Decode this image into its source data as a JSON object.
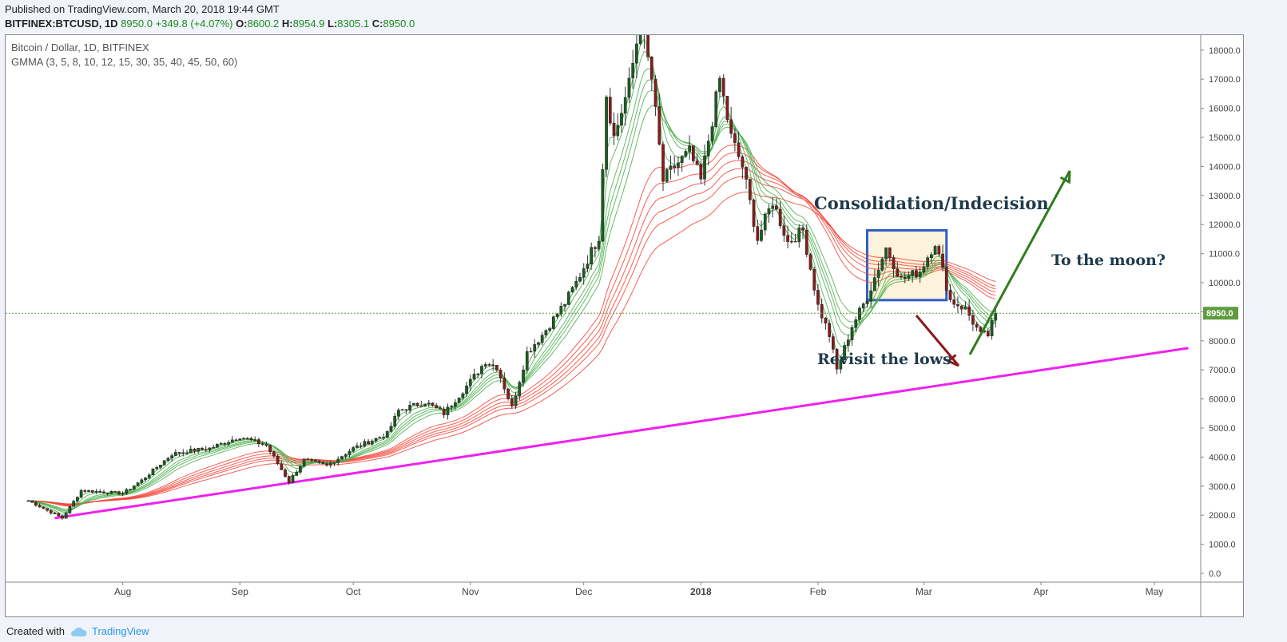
{
  "header": {
    "published": "Published on TradingView.com, March 20, 2018 19:44 GMT",
    "symbol": "BITFINEX:BTCUSD, 1D",
    "last": "8950.0",
    "change": "+349.8 (+4.07%)",
    "o_label": "O:",
    "o": "8600.2",
    "h_label": "H:",
    "h": "8954.9",
    "l_label": "L:",
    "l": "8305.1",
    "c_label": "C:",
    "c": "8950.0"
  },
  "legend": {
    "pair": "Bitcoin / Dollar, 1D, BITFINEX",
    "study": "GMMA (3, 5, 8, 10, 12, 15, 30, 35, 40, 45, 50, 60)"
  },
  "annotations": {
    "consolidation": "Consolidation/Indecision",
    "moon": "To the moon?",
    "revisit": "Revisit the lows"
  },
  "footer": {
    "created_with": "Created with",
    "brand": "TradingView"
  },
  "colors": {
    "up": "#1b5e20",
    "down": "#8b1a1a",
    "short_ema": "#4caf50",
    "long_ema": "#f44336",
    "trendline": "#ee22ee",
    "box": "#2f5ec4",
    "arrow_up": "#2e7d1b",
    "arrow_down": "#8b1a1a",
    "price_tag": "#5e9c3e"
  },
  "chart_data": {
    "type": "candlestick",
    "symbol": "BTCUSD",
    "timeframe": "1D",
    "ylim": [
      -500,
      18700
    ],
    "y_ticks": [
      "0.0",
      "1000.0",
      "2000.0",
      "3000.0",
      "4000.0",
      "5000.0",
      "6000.0",
      "7000.0",
      "8000.0",
      "9000.0",
      "10000.0",
      "11000.0",
      "12000.0",
      "13000.0",
      "14000.0",
      "15000.0",
      "16000.0",
      "17000.0",
      "18000.0"
    ],
    "x_ticks": [
      {
        "label": "Aug",
        "date": "2017-08-01"
      },
      {
        "label": "Sep",
        "date": "2017-09-01"
      },
      {
        "label": "Oct",
        "date": "2017-10-01"
      },
      {
        "label": "Nov",
        "date": "2017-11-01"
      },
      {
        "label": "Dec",
        "date": "2017-12-01"
      },
      {
        "label": "2018",
        "date": "2018-01-01"
      },
      {
        "label": "Feb",
        "date": "2018-02-01"
      },
      {
        "label": "Mar",
        "date": "2018-03-01"
      },
      {
        "label": "Apr",
        "date": "2018-04-01"
      },
      {
        "label": "May",
        "date": "2018-05-01"
      }
    ],
    "last_price_label": "8950.0",
    "last_price": 8950,
    "close_series": [
      {
        "date": "2017-07-07",
        "close": 2500
      },
      {
        "date": "2017-07-16",
        "close": 1900
      },
      {
        "date": "2017-07-21",
        "close": 2850
      },
      {
        "date": "2017-08-01",
        "close": 2750
      },
      {
        "date": "2017-08-06",
        "close": 3200
      },
      {
        "date": "2017-08-14",
        "close": 4100
      },
      {
        "date": "2017-08-18",
        "close": 4200
      },
      {
        "date": "2017-08-24",
        "close": 4300
      },
      {
        "date": "2017-09-01",
        "close": 4700
      },
      {
        "date": "2017-09-08",
        "close": 4400
      },
      {
        "date": "2017-09-14",
        "close": 3150
      },
      {
        "date": "2017-09-18",
        "close": 3900
      },
      {
        "date": "2017-09-24",
        "close": 3700
      },
      {
        "date": "2017-10-01",
        "close": 4300
      },
      {
        "date": "2017-10-10",
        "close": 4800
      },
      {
        "date": "2017-10-13",
        "close": 5600
      },
      {
        "date": "2017-10-20",
        "close": 5900
      },
      {
        "date": "2017-10-25",
        "close": 5500
      },
      {
        "date": "2017-11-01",
        "close": 6600
      },
      {
        "date": "2017-11-05",
        "close": 7300
      },
      {
        "date": "2017-11-08",
        "close": 7100
      },
      {
        "date": "2017-11-12",
        "close": 5700
      },
      {
        "date": "2017-11-16",
        "close": 7600
      },
      {
        "date": "2017-11-20",
        "close": 8200
      },
      {
        "date": "2017-11-26",
        "close": 9300
      },
      {
        "date": "2017-11-29",
        "close": 10000
      },
      {
        "date": "2017-12-05",
        "close": 11600
      },
      {
        "date": "2017-12-07",
        "close": 16500
      },
      {
        "date": "2017-12-09",
        "close": 15000
      },
      {
        "date": "2017-12-13",
        "close": 16800
      },
      {
        "date": "2017-12-16",
        "close": 19000
      },
      {
        "date": "2017-12-19",
        "close": 17000
      },
      {
        "date": "2017-12-22",
        "close": 13500
      },
      {
        "date": "2017-12-25",
        "close": 14000
      },
      {
        "date": "2017-12-29",
        "close": 14500
      },
      {
        "date": "2018-01-01",
        "close": 13500
      },
      {
        "date": "2018-01-06",
        "close": 17000
      },
      {
        "date": "2018-01-09",
        "close": 15000
      },
      {
        "date": "2018-01-12",
        "close": 14000
      },
      {
        "date": "2018-01-16",
        "close": 11500
      },
      {
        "date": "2018-01-20",
        "close": 12800
      },
      {
        "date": "2018-01-24",
        "close": 11400
      },
      {
        "date": "2018-01-28",
        "close": 11800
      },
      {
        "date": "2018-02-01",
        "close": 9200
      },
      {
        "date": "2018-02-04",
        "close": 8200
      },
      {
        "date": "2018-02-06",
        "close": 7000
      },
      {
        "date": "2018-02-10",
        "close": 8500
      },
      {
        "date": "2018-02-14",
        "close": 9500
      },
      {
        "date": "2018-02-19",
        "close": 11200
      },
      {
        "date": "2018-02-23",
        "close": 10100
      },
      {
        "date": "2018-02-28",
        "close": 10400
      },
      {
        "date": "2018-03-04",
        "close": 11400
      },
      {
        "date": "2018-03-08",
        "close": 9400
      },
      {
        "date": "2018-03-12",
        "close": 9100
      },
      {
        "date": "2018-03-16",
        "close": 8200
      },
      {
        "date": "2018-03-18",
        "close": 8200
      },
      {
        "date": "2018-03-20",
        "close": 8950
      }
    ],
    "trendline": {
      "start": {
        "date": "2017-07-14",
        "value": 1900
      },
      "end": {
        "date": "2018-05-10",
        "value": 7750
      }
    }
  }
}
